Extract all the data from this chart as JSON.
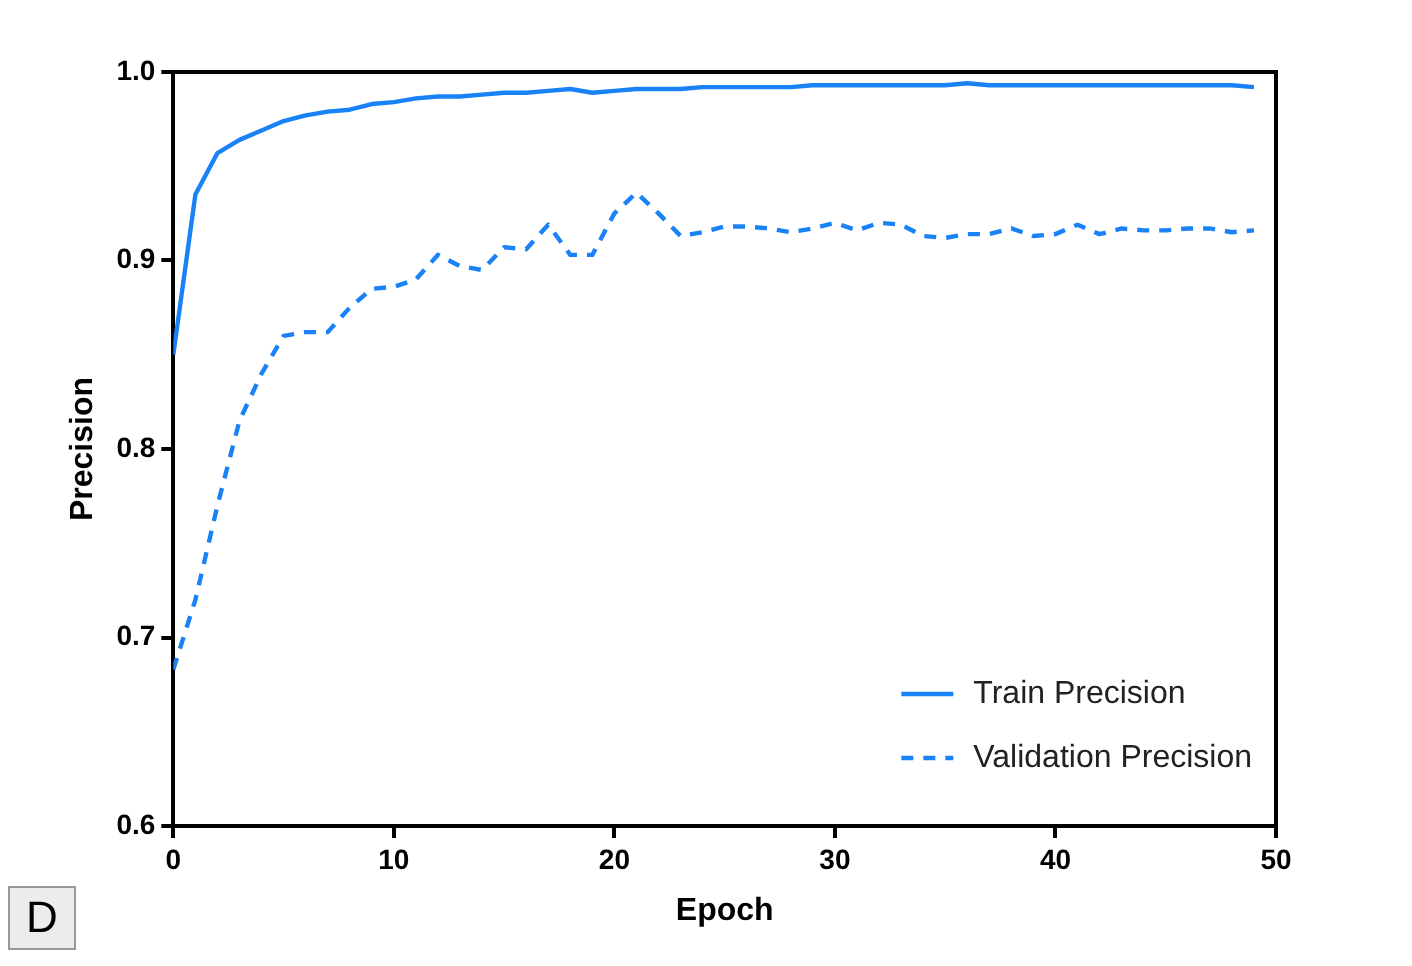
{
  "chart_data": {
    "type": "line",
    "xlabel": "Epoch",
    "ylabel": "Precision",
    "annotations": [
      "D"
    ],
    "x": [
      0,
      1,
      2,
      3,
      4,
      5,
      6,
      7,
      8,
      9,
      10,
      11,
      12,
      13,
      14,
      15,
      16,
      17,
      18,
      19,
      20,
      21,
      22,
      23,
      24,
      25,
      26,
      27,
      28,
      29,
      30,
      31,
      32,
      33,
      34,
      35,
      36,
      37,
      38,
      39,
      40,
      41,
      42,
      43,
      44,
      45,
      46,
      47,
      48,
      49
    ],
    "series": [
      {
        "name": "Train Precision",
        "color": "#1a82f7",
        "line_style": "solid",
        "values": [
          0.85,
          0.935,
          0.957,
          0.964,
          0.969,
          0.974,
          0.977,
          0.979,
          0.98,
          0.983,
          0.984,
          0.986,
          0.987,
          0.987,
          0.988,
          0.989,
          0.989,
          0.99,
          0.991,
          0.989,
          0.99,
          0.991,
          0.991,
          0.991,
          0.992,
          0.992,
          0.992,
          0.992,
          0.992,
          0.993,
          0.993,
          0.993,
          0.993,
          0.993,
          0.993,
          0.993,
          0.994,
          0.993,
          0.993,
          0.993,
          0.993,
          0.993,
          0.993,
          0.993,
          0.993,
          0.993,
          0.993,
          0.993,
          0.993,
          0.992
        ]
      },
      {
        "name": "Validation Precision",
        "color": "#1a82f7",
        "line_style": "dashed",
        "values": [
          0.683,
          0.72,
          0.77,
          0.815,
          0.84,
          0.86,
          0.862,
          0.862,
          0.875,
          0.885,
          0.886,
          0.89,
          0.903,
          0.897,
          0.895,
          0.907,
          0.906,
          0.919,
          0.903,
          0.903,
          0.925,
          0.936,
          0.925,
          0.913,
          0.915,
          0.918,
          0.918,
          0.917,
          0.915,
          0.917,
          0.92,
          0.916,
          0.92,
          0.919,
          0.913,
          0.912,
          0.914,
          0.914,
          0.917,
          0.913,
          0.914,
          0.919,
          0.914,
          0.917,
          0.916,
          0.916,
          0.917,
          0.917,
          0.915,
          0.916
        ]
      }
    ],
    "xlim": [
      0,
      50
    ],
    "xticks": [
      0,
      10,
      20,
      30,
      40,
      50
    ],
    "ylim": [
      0.6,
      1.0
    ],
    "yticks": [
      {
        "value": 0.6,
        "label": "0.6"
      },
      {
        "value": 0.7,
        "label": "0.7"
      },
      {
        "value": 0.8,
        "label": "0.8"
      },
      {
        "value": 0.9,
        "label": "0.9"
      },
      {
        "value": 1.0,
        "label": "1.0"
      }
    ],
    "grid": false,
    "legend": "bottom right",
    "marker": "none"
  }
}
